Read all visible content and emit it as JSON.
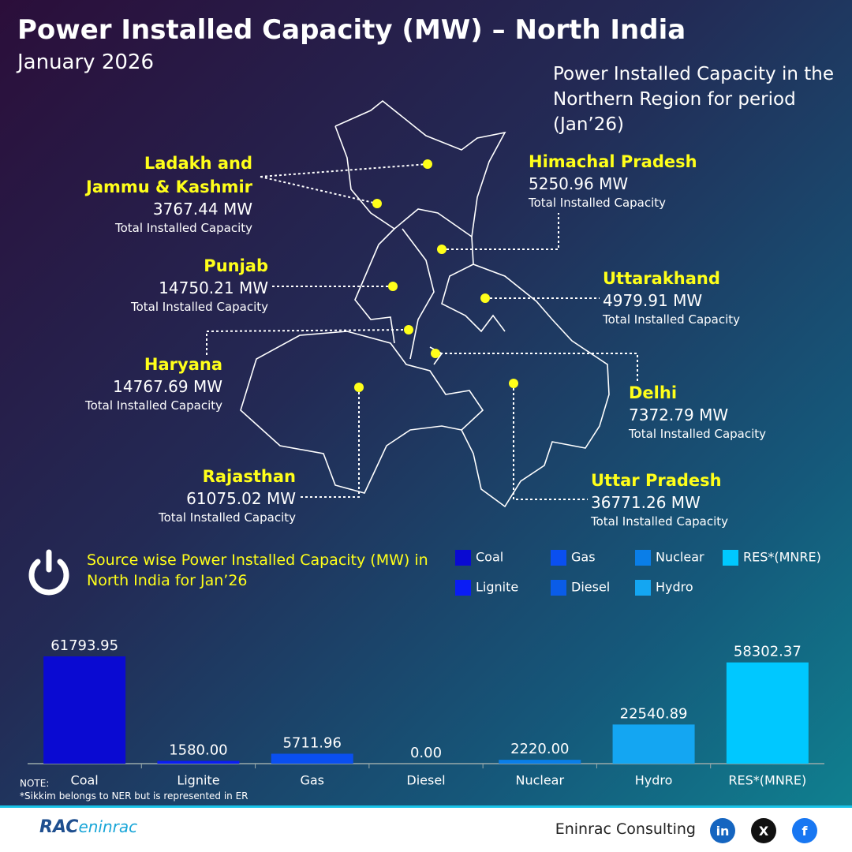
{
  "header": {
    "title": "Power Installed Capacity (MW) – North India",
    "subtitle": "January 2026"
  },
  "map": {
    "title": "Power Installed Capacity in the Northern Region for period (Jan’26)",
    "states": [
      {
        "name": "Ladakh and\nJammu & Kashmir",
        "value": "3767.44 MW",
        "caption": "Total Installed Capacity"
      },
      {
        "name": "Himachal Pradesh",
        "value": "5250.96 MW",
        "caption": "Total Installed Capacity"
      },
      {
        "name": "Punjab",
        "value": "14750.21 MW",
        "caption": "Total Installed Capacity"
      },
      {
        "name": "Uttarakhand",
        "value": "4979.91 MW",
        "caption": "Total Installed Capacity"
      },
      {
        "name": "Haryana",
        "value": "14767.69 MW",
        "caption": "Total Installed Capacity"
      },
      {
        "name": "Delhi",
        "value": "7372.79 MW",
        "caption": "Total Installed Capacity"
      },
      {
        "name": "Rajasthan",
        "value": "61075.02 MW",
        "caption": "Total Installed Capacity"
      },
      {
        "name": "Uttar Pradesh",
        "value": "36771.26 MW",
        "caption": "Total Installed Capacity"
      }
    ]
  },
  "chart_data": {
    "type": "bar",
    "title": "Source wise Power Installed Capacity (MW) in North India for Jan’26",
    "categories": [
      "Coal",
      "Lignite",
      "Gas",
      "Diesel",
      "Nuclear",
      "Hydro",
      "RES*(MNRE)"
    ],
    "values": [
      61793.95,
      1580,
      5711.96,
      0,
      2220,
      22540.89,
      58302.37
    ],
    "value_labels": [
      "61793.95",
      "1580.00",
      "5711.96",
      "0.00",
      "2220.00",
      "22540.89",
      "58302.37"
    ],
    "colors": [
      "#0a0ad2",
      "#0a1cf5",
      "#0a4ff0",
      "#0a5ce8",
      "#0a7ee8",
      "#14a6f2",
      "#00c8ff"
    ]
  },
  "footer": {
    "note": "NOTE:",
    "note_text": "*Sikkim belongs to NER but is represented in ER",
    "logo": [
      "RAC",
      "eninrac"
    ],
    "brand": "Eninrac Consulting",
    "social": [
      "in",
      "X",
      "f"
    ]
  }
}
